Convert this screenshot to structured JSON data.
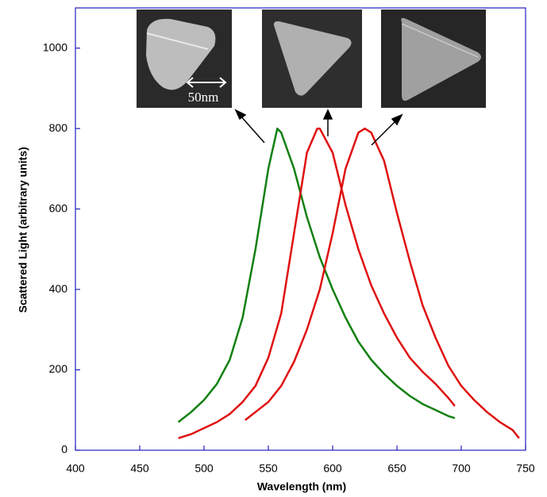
{
  "chart_data": {
    "type": "line",
    "x_label": "Wavelength (nm)",
    "y_label": "Scattered Light (arbitrary units)",
    "scale_bar_label": "50nm",
    "xlim": [
      400,
      750
    ],
    "xticks": [
      400,
      450,
      500,
      550,
      600,
      650,
      700,
      750
    ],
    "ylim": [
      0,
      1100
    ],
    "yticks": [
      0,
      200,
      400,
      600,
      800,
      1000
    ],
    "series": [
      {
        "color": "#108010",
        "x": [
          480,
          490,
          500,
          510,
          520,
          530,
          540,
          550,
          557,
          560,
          570,
          580,
          590,
          600,
          610,
          620,
          630,
          640,
          650,
          660,
          670,
          680,
          690,
          695
        ],
        "values": [
          70,
          95,
          125,
          165,
          225,
          330,
          500,
          700,
          800,
          790,
          700,
          580,
          480,
          400,
          330,
          270,
          225,
          190,
          160,
          135,
          115,
          100,
          85,
          80
        ]
      },
      {
        "color": "#e01010",
        "x": [
          480,
          490,
          500,
          510,
          520,
          530,
          540,
          550,
          560,
          570,
          580,
          588,
          590,
          600,
          610,
          620,
          630,
          640,
          650,
          660,
          670,
          680,
          690,
          695
        ],
        "values": [
          30,
          40,
          55,
          70,
          90,
          120,
          160,
          230,
          340,
          540,
          740,
          800,
          800,
          740,
          610,
          500,
          410,
          340,
          280,
          230,
          195,
          165,
          130,
          110
        ]
      },
      {
        "color": "#e01010",
        "x": [
          532,
          540,
          550,
          560,
          570,
          580,
          590,
          600,
          610,
          620,
          625,
          630,
          640,
          650,
          660,
          670,
          680,
          690,
          700,
          710,
          720,
          730,
          740,
          745
        ],
        "values": [
          75,
          95,
          120,
          160,
          220,
          300,
          400,
          540,
          700,
          790,
          800,
          790,
          720,
          590,
          470,
          360,
          280,
          210,
          160,
          125,
          95,
          70,
          50,
          30
        ]
      }
    ]
  }
}
